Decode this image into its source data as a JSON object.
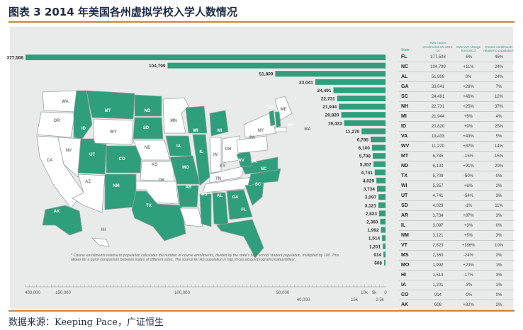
{
  "header": {
    "title": "图表 3  2014 年美国各州虚拟学校入学人数情况"
  },
  "footer": {
    "source": "数据来源：Keeping Pace，广证恒生"
  },
  "colors": {
    "accent_rule": "#c8843c",
    "bar": "#2f9e7c",
    "panel": "#e9eaea",
    "state_fill_green": "#2f9e7c",
    "state_fill_white": "#ffffff"
  },
  "note": "* Course enrollments relative to population calculates the number of course enrollments, divided by the state's high school student population, multiplied by 100. This allows for a quick comparison between states of different sizes. The source for HS population is http://nces.ed.gov/programs/stateprofiles/.",
  "table": {
    "headers": [
      "State",
      "SVS course enrollments SY 2013-14",
      "SVS YoY change from 2013",
      "Course enrollments relative to population*"
    ],
    "rows": [
      [
        "FL",
        "377,508",
        "-5%",
        "45%"
      ],
      [
        "NC",
        "104,799",
        "+11%",
        "24%"
      ],
      [
        "AL",
        "51,809",
        "0%",
        "24%"
      ],
      [
        "GA",
        "33,041",
        "+28%",
        "7%"
      ],
      [
        "SC",
        "24,491",
        "+46%",
        "12%"
      ],
      [
        "NH",
        "22,731",
        "+25%",
        "37%"
      ],
      [
        "MI",
        "21,944",
        "+5%",
        "4%"
      ],
      [
        "ID",
        "20,820",
        "+9%",
        "25%"
      ],
      [
        "VA",
        "19,433",
        "+49%",
        "5%"
      ],
      [
        "WV",
        "11,270",
        "+87%",
        "14%"
      ],
      [
        "MT",
        "6,785",
        "-15%",
        "15%"
      ],
      [
        "ND",
        "6,100",
        "+91%",
        "20%"
      ],
      [
        "TX",
        "5,708",
        "-50%",
        "0%"
      ],
      [
        "WI",
        "5,357",
        "+6%",
        "2%"
      ],
      [
        "UT",
        "4,741",
        "-54%",
        "3%"
      ],
      [
        "SD",
        "4,029",
        "-1%",
        "11%"
      ],
      [
        "AR",
        "3,734",
        "+87%",
        "3%"
      ],
      [
        "IL",
        "3,097",
        "+3%",
        "0%"
      ],
      [
        "NM",
        "3,121",
        "+5%",
        "3%"
      ],
      [
        "VT",
        "2,823",
        "+186%",
        "10%"
      ],
      [
        "MS",
        "2,360",
        "-24%",
        "2%"
      ],
      [
        "MO",
        "1,992",
        "+23%",
        "1%"
      ],
      [
        "HI",
        "1,514",
        "-17%",
        "3%"
      ],
      [
        "IA",
        "1,201",
        "-3%",
        "1%"
      ],
      [
        "CO",
        "914",
        "-9%",
        "0%"
      ],
      [
        "AK",
        "608",
        "+82%",
        "2%"
      ]
    ]
  },
  "map": {
    "green_states": [
      "MT",
      "ND",
      "SD",
      "ID",
      "UT",
      "CO",
      "NM",
      "TX",
      "WI",
      "MI",
      "IA",
      "IL",
      "MO",
      "AR",
      "MS",
      "AL",
      "GA",
      "SC",
      "NC",
      "VA",
      "WV",
      "FL",
      "AK",
      "NH",
      "VT"
    ],
    "white_states": [
      "WA",
      "OR",
      "CA",
      "NV",
      "AZ",
      "WY",
      "NE",
      "KS",
      "OK",
      "MN",
      "IN",
      "OH",
      "KY",
      "TN",
      "LA",
      "PA",
      "NY",
      "ME",
      "MA",
      "CT",
      "RI",
      "NJ",
      "DE",
      "MD",
      "DC",
      "HI"
    ]
  },
  "chart_data": {
    "type": "bar",
    "orientation": "horizontal",
    "categories": [
      "FL",
      "NC",
      "AL",
      "GA",
      "SC",
      "NH",
      "MI",
      "ID",
      "VA",
      "WV",
      "MT",
      "ND",
      "TX",
      "WI",
      "UT",
      "SD",
      "AR",
      "IL",
      "NM",
      "VT",
      "MS",
      "MO",
      "HI",
      "IA",
      "CO",
      "AK"
    ],
    "values": [
      377508,
      104799,
      51809,
      33041,
      24491,
      22731,
      21944,
      20820,
      19433,
      11270,
      6785,
      6100,
      5708,
      5357,
      4741,
      4029,
      3734,
      3097,
      3121,
      2823,
      2360,
      1992,
      1514,
      1201,
      914,
      608
    ],
    "value_labels": [
      "377,508",
      "104,799",
      "51,809",
      "33,041",
      "24,491",
      "22,731",
      "21,944",
      "20,820",
      "19,433",
      "11,270",
      "6,785",
      "6,100",
      "5,708",
      "5,357",
      "4,741",
      "4,029",
      "3,734",
      "3,097",
      "3,121",
      "2,823",
      "2,360",
      "1,992",
      "1,514",
      "1,201",
      "914",
      "608"
    ],
    "x_axis_ticks_top": [
      "400,000",
      "150,000",
      "100,000",
      "50,000",
      "10k",
      "5k",
      "0"
    ],
    "x_axis_ticks_bottom": [
      "40,000",
      "15k",
      "2.5k"
    ],
    "scale": "broken (non-linear)",
    "grid": false,
    "legend": "none"
  }
}
